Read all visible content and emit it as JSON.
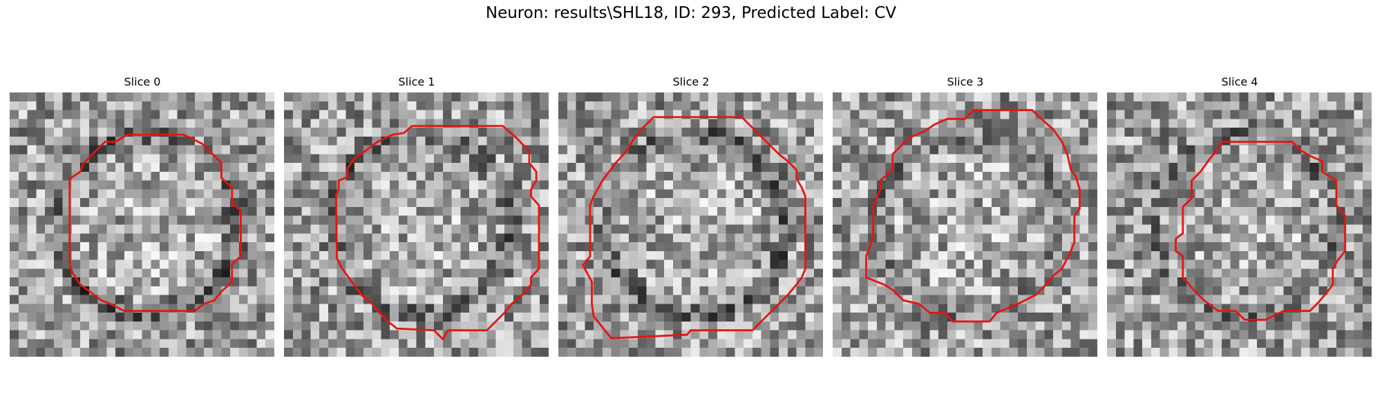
{
  "figure": {
    "title": "Neuron: results\\SHL18, ID: 293, Predicted Label: CV",
    "contour_color": "#e8130f",
    "panels": [
      {
        "title": "Slice 0",
        "seed": 11,
        "ring": 0.5
      },
      {
        "title": "Slice 1",
        "seed": 23,
        "ring": 0.35
      },
      {
        "title": "Slice 2",
        "seed": 37,
        "ring": 0.45
      },
      {
        "title": "Slice 3",
        "seed": 41,
        "ring": 0.3
      },
      {
        "title": "Slice 4",
        "seed": 59,
        "ring": 0.3
      }
    ]
  }
}
